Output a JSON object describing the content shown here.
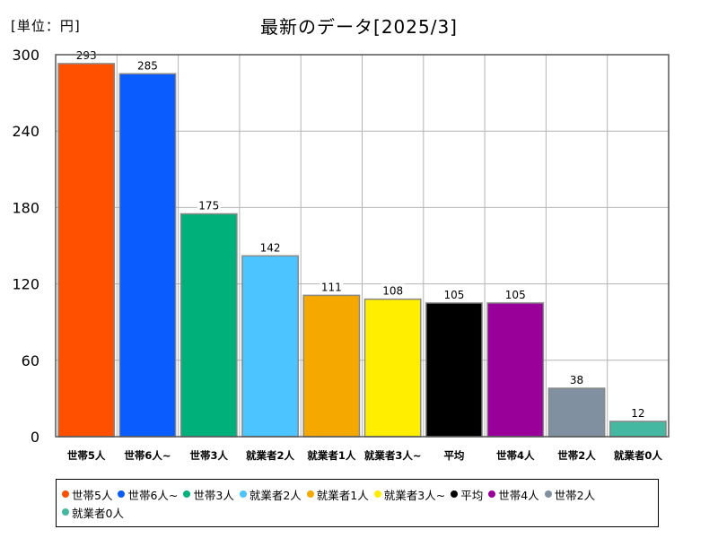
{
  "unit_label": "[単位：円]",
  "title": "最新のデータ[2025/3]",
  "chart_data": {
    "type": "bar",
    "categories": [
      "世帯5人",
      "世帯6人~",
      "世帯3人",
      "就業者2人",
      "就業者1人",
      "就業者3人~",
      "平均",
      "世帯4人",
      "世帯2人",
      "就業者0人"
    ],
    "values": [
      293,
      285,
      175,
      142,
      111,
      108,
      105,
      105,
      38,
      12
    ],
    "colors": [
      "#ff5000",
      "#0a5cff",
      "#00b07a",
      "#4cc4ff",
      "#f5a800",
      "#ffee00",
      "#000000",
      "#990099",
      "#8090a0",
      "#44b8a0"
    ],
    "ylim": [
      0,
      300
    ],
    "yticks": [
      0,
      60,
      120,
      180,
      240,
      300
    ],
    "grid": true,
    "legend_position": "bottom"
  }
}
